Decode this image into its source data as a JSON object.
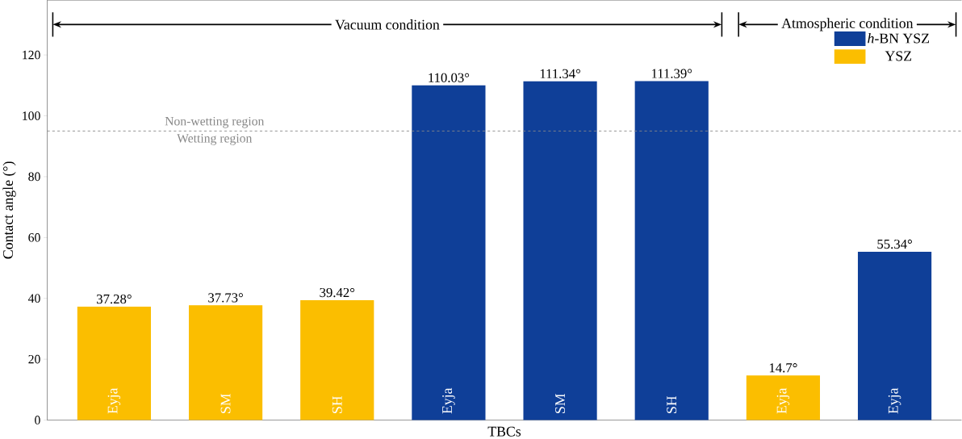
{
  "chart_data": {
    "type": "bar",
    "xlabel": "TBCs",
    "ylabel": "Contact angle (°)",
    "categories": [
      "Eyja",
      "SM",
      "SH",
      "Eyja",
      "SM",
      "SH",
      "Eyja",
      "Eyja"
    ],
    "series": [
      {
        "name": "*h*-BN YSZ",
        "color": "#0f3f98",
        "values": [
          null,
          null,
          null,
          110.03,
          111.34,
          111.39,
          null,
          55.34
        ],
        "value_labels": [
          null,
          null,
          null,
          "110.03°",
          "111.34°",
          "111.39°",
          null,
          "55.34°"
        ]
      },
      {
        "name": "YSZ",
        "color": "#fbbe00",
        "values": [
          37.28,
          37.73,
          39.42,
          null,
          null,
          null,
          14.7,
          null
        ],
        "value_labels": [
          "37.28°",
          "37.73°",
          "39.42°",
          null,
          null,
          null,
          "14.7°",
          null
        ]
      }
    ],
    "ylim": [
      0,
      138
    ],
    "yticks": [
      0,
      20,
      40,
      60,
      80,
      100,
      120
    ],
    "grid": false,
    "legend": "top right",
    "ref_lines": [
      {
        "axis": "y",
        "value": 95,
        "label": "Non-wetting region",
        "color": "#888888",
        "line_style": "dashed"
      }
    ],
    "annotations": [
      {
        "text": "Wetting region",
        "y": 95
      },
      "Vacuum condition",
      "Atmospheric condition"
    ]
  }
}
